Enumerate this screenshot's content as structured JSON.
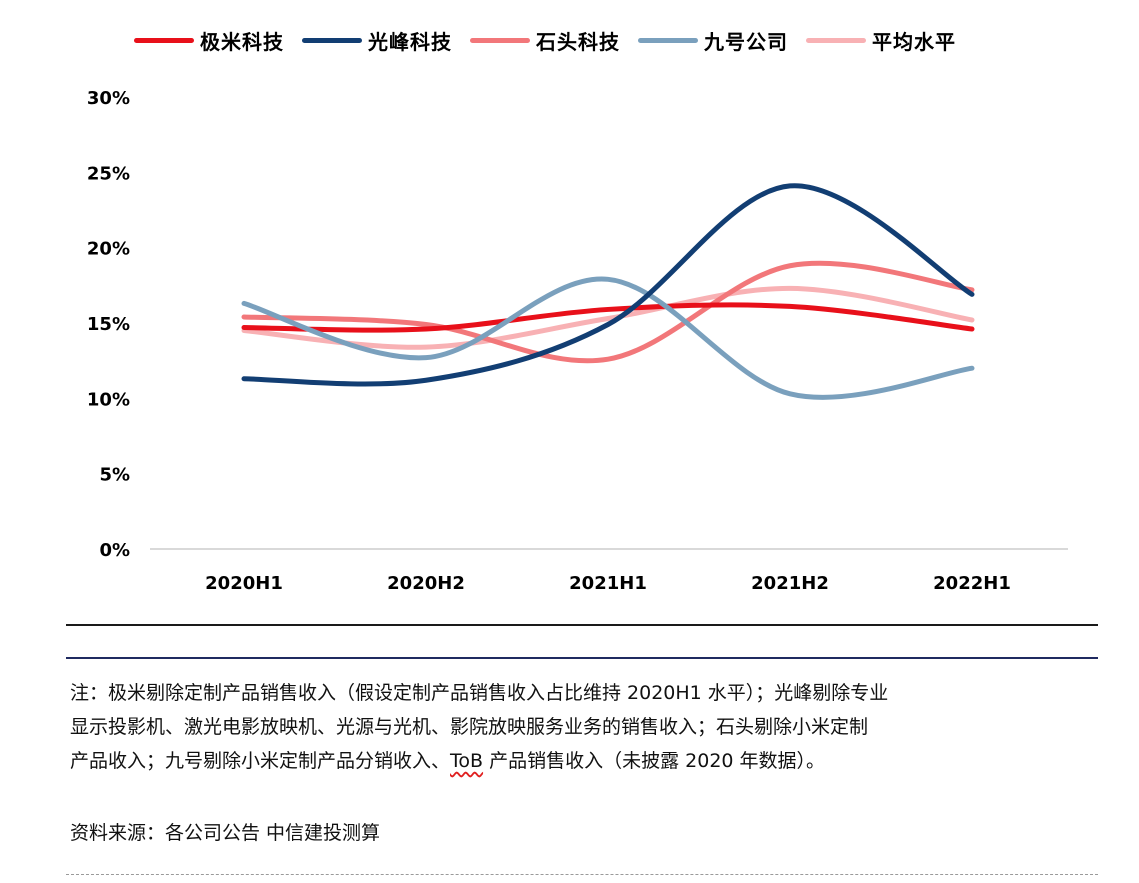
{
  "legend": [
    {
      "label": "极米科技",
      "color": "#e8101a"
    },
    {
      "label": "光峰科技",
      "color": "#123e73"
    },
    {
      "label": "石头科技",
      "color": "#f2777a"
    },
    {
      "label": "九号公司",
      "color": "#7aa0bd"
    },
    {
      "label": "平均水平",
      "color": "#f8b1b4"
    }
  ],
  "chart_data": {
    "type": "line",
    "smooth": true,
    "categories": [
      "2020H1",
      "2020H2",
      "2021H1",
      "2021H2",
      "2022H1"
    ],
    "y_ticks": [
      "30%",
      "25%",
      "20%",
      "15%",
      "10%",
      "5%",
      "0%"
    ],
    "ylim": [
      0,
      30
    ],
    "y_unit": "%",
    "grid": false,
    "legend_position": "top",
    "series": [
      {
        "name": "极米科技",
        "color": "#e8101a",
        "values": [
          14.7,
          14.6,
          15.9,
          16.1,
          14.6
        ]
      },
      {
        "name": "光峰科技",
        "color": "#123e73",
        "values": [
          11.3,
          11.2,
          14.9,
          24.1,
          16.9
        ]
      },
      {
        "name": "石头科技",
        "color": "#f2777a",
        "values": [
          15.4,
          14.9,
          12.6,
          18.8,
          17.2
        ]
      },
      {
        "name": "九号公司",
        "color": "#7aa0bd",
        "values": [
          16.3,
          12.7,
          17.9,
          10.3,
          12.0
        ]
      },
      {
        "name": "平均水平",
        "color": "#f8b1b4",
        "values": [
          14.5,
          13.4,
          15.3,
          17.3,
          15.2
        ]
      }
    ]
  },
  "note": {
    "line1": "注：极米剔除定制产品销售收入（假设定制产品销售收入占比维持 2020H1 水平）；光峰剔除专业",
    "line2": "显示投影机、激光电影放映机、光源与光机、影院放映服务业务的销售收入；石头剔除小米定制",
    "line3_a": "产品收入；九号剔除小米定制产品分销收入、",
    "line3_tob": "ToB",
    "line3_b": " 产品销售收入（未披露 2020 年数据）。",
    "source": "资料来源：各公司公告    中信建投测算"
  }
}
